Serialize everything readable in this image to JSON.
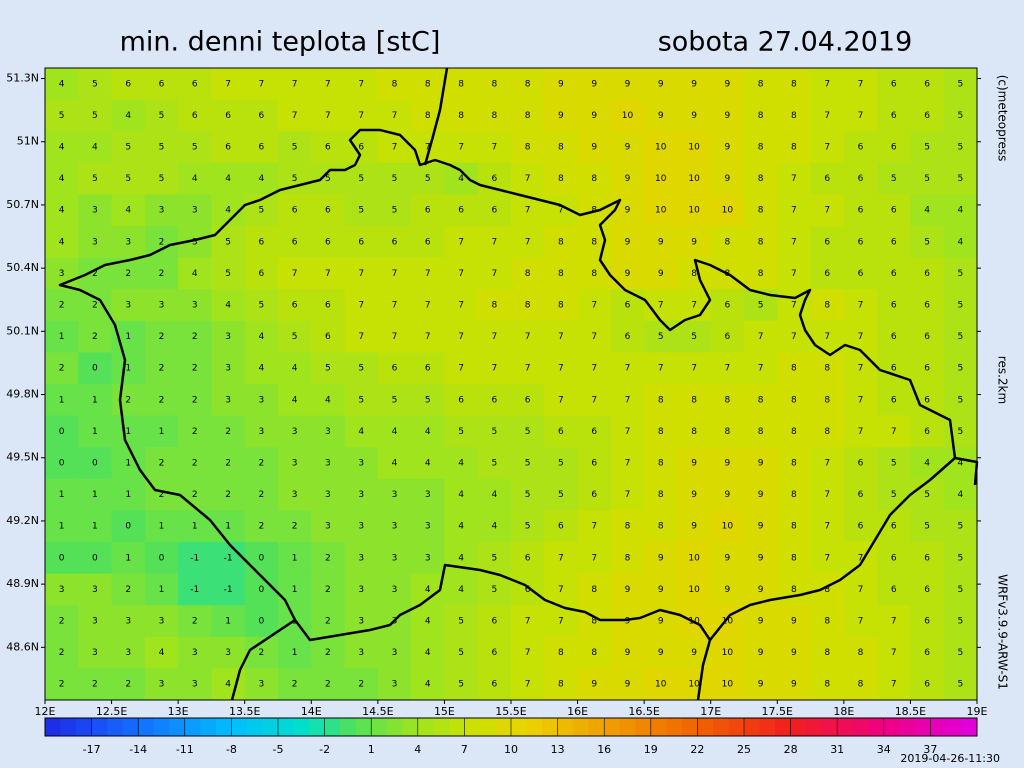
{
  "header": {
    "title": "min. denni teplota [stC]",
    "date": "sobota 27.04.2019"
  },
  "side": {
    "copyright": "(c)meteopress",
    "resolution": "res.2km",
    "model": "WRFv3.9.9-ARW-S1"
  },
  "footer": {
    "run": "2019-04-26-11:30"
  },
  "map": {
    "xlim": [
      12,
      19
    ],
    "ylim": [
      48.35,
      51.35
    ],
    "xticks": [
      {
        "value": 12,
        "label": "12E"
      },
      {
        "value": 12.5,
        "label": "12.5E"
      },
      {
        "value": 13,
        "label": "13E"
      },
      {
        "value": 13.5,
        "label": "13.5E"
      },
      {
        "value": 14,
        "label": "14E"
      },
      {
        "value": 14.5,
        "label": "14.5E"
      },
      {
        "value": 15,
        "label": "15E"
      },
      {
        "value": 15.5,
        "label": "15.5E"
      },
      {
        "value": 16,
        "label": "16E"
      },
      {
        "value": 16.5,
        "label": "16.5E"
      },
      {
        "value": 17,
        "label": "17E"
      },
      {
        "value": 17.5,
        "label": "17.5E"
      },
      {
        "value": 18,
        "label": "18E"
      },
      {
        "value": 18.5,
        "label": "18.5E"
      },
      {
        "value": 19,
        "label": "19E"
      }
    ],
    "yticks": [
      {
        "value": 51.3,
        "label": "51.3N"
      },
      {
        "value": 51,
        "label": "51N"
      },
      {
        "value": 50.7,
        "label": "50.7N"
      },
      {
        "value": 50.4,
        "label": "50.4N"
      },
      {
        "value": 50.1,
        "label": "50.1N"
      },
      {
        "value": 49.8,
        "label": "49.8N"
      },
      {
        "value": 49.5,
        "label": "49.5N"
      },
      {
        "value": 49.2,
        "label": "49.2N"
      },
      {
        "value": 48.9,
        "label": "48.9N"
      },
      {
        "value": 48.6,
        "label": "48.6N"
      }
    ],
    "grid": [
      [
        4,
        5,
        6,
        6,
        6,
        7,
        7,
        7,
        7,
        7,
        8,
        8,
        8,
        8,
        8,
        9,
        9,
        9,
        9,
        9,
        9,
        8,
        8,
        7,
        7,
        6,
        6,
        5
      ],
      [
        5,
        5,
        4,
        5,
        6,
        6,
        6,
        7,
        7,
        7,
        7,
        8,
        8,
        8,
        8,
        9,
        9,
        10,
        9,
        9,
        9,
        8,
        8,
        7,
        7,
        6,
        6,
        5
      ],
      [
        4,
        4,
        5,
        5,
        5,
        6,
        6,
        5,
        6,
        6,
        7,
        7,
        7,
        7,
        8,
        8,
        9,
        9,
        10,
        10,
        9,
        8,
        8,
        7,
        6,
        6,
        5,
        5
      ],
      [
        4,
        5,
        5,
        5,
        4,
        4,
        4,
        5,
        5,
        5,
        5,
        5,
        4,
        6,
        7,
        8,
        8,
        9,
        10,
        10,
        9,
        8,
        7,
        6,
        6,
        5,
        5,
        5
      ],
      [
        4,
        3,
        4,
        3,
        3,
        4,
        5,
        6,
        6,
        5,
        5,
        6,
        6,
        6,
        7,
        7,
        8,
        9,
        10,
        10,
        10,
        8,
        7,
        7,
        6,
        6,
        4,
        4
      ],
      [
        4,
        3,
        3,
        2,
        3,
        5,
        6,
        6,
        6,
        6,
        6,
        6,
        7,
        7,
        7,
        8,
        8,
        9,
        9,
        9,
        8,
        8,
        7,
        6,
        6,
        6,
        5,
        4
      ],
      [
        3,
        2,
        2,
        2,
        4,
        5,
        6,
        7,
        7,
        7,
        7,
        7,
        7,
        7,
        8,
        8,
        8,
        9,
        9,
        8,
        8,
        8,
        7,
        6,
        6,
        6,
        6,
        5
      ],
      [
        2,
        2,
        3,
        3,
        3,
        4,
        5,
        6,
        6,
        7,
        7,
        7,
        7,
        8,
        8,
        8,
        7,
        6,
        7,
        7,
        6,
        5,
        7,
        8,
        7,
        6,
        6,
        5
      ],
      [
        1,
        2,
        1,
        2,
        2,
        3,
        4,
        5,
        6,
        7,
        7,
        7,
        7,
        7,
        7,
        7,
        7,
        6,
        5,
        5,
        6,
        7,
        7,
        7,
        7,
        6,
        6,
        5
      ],
      [
        2,
        0,
        1,
        2,
        2,
        3,
        4,
        4,
        5,
        5,
        6,
        6,
        7,
        7,
        7,
        7,
        7,
        7,
        7,
        7,
        7,
        7,
        8,
        8,
        7,
        6,
        6,
        5
      ],
      [
        1,
        1,
        2,
        2,
        2,
        3,
        3,
        4,
        4,
        5,
        5,
        5,
        6,
        6,
        6,
        7,
        7,
        7,
        8,
        8,
        8,
        8,
        8,
        8,
        7,
        6,
        6,
        5
      ],
      [
        0,
        1,
        1,
        1,
        2,
        2,
        3,
        3,
        3,
        4,
        4,
        4,
        5,
        5,
        5,
        6,
        6,
        7,
        8,
        8,
        8,
        8,
        8,
        8,
        7,
        7,
        6,
        5
      ],
      [
        0,
        0,
        1,
        2,
        2,
        2,
        2,
        3,
        3,
        3,
        4,
        4,
        4,
        5,
        5,
        5,
        6,
        7,
        8,
        9,
        9,
        9,
        8,
        7,
        6,
        5,
        4,
        4
      ],
      [
        1,
        1,
        1,
        2,
        2,
        2,
        2,
        3,
        3,
        3,
        3,
        3,
        4,
        4,
        5,
        5,
        6,
        7,
        8,
        9,
        9,
        9,
        8,
        7,
        6,
        5,
        5,
        4
      ],
      [
        1,
        1,
        0,
        1,
        1,
        1,
        2,
        2,
        3,
        3,
        3,
        3,
        4,
        4,
        5,
        6,
        7,
        8,
        8,
        9,
        10,
        9,
        8,
        7,
        6,
        6,
        5,
        5
      ],
      [
        0,
        0,
        1,
        0,
        -1,
        -1,
        0,
        1,
        2,
        3,
        3,
        3,
        4,
        5,
        6,
        7,
        7,
        8,
        9,
        10,
        9,
        9,
        8,
        7,
        7,
        6,
        6,
        5
      ],
      [
        3,
        3,
        2,
        1,
        -1,
        -1,
        0,
        1,
        2,
        3,
        3,
        4,
        4,
        5,
        6,
        7,
        8,
        9,
        9,
        10,
        9,
        9,
        8,
        8,
        7,
        6,
        6,
        5
      ],
      [
        2,
        3,
        3,
        3,
        2,
        1,
        0,
        1,
        2,
        3,
        3,
        4,
        5,
        6,
        7,
        7,
        8,
        9,
        9,
        10,
        10,
        9,
        9,
        8,
        7,
        7,
        6,
        5
      ],
      [
        2,
        3,
        3,
        4,
        3,
        3,
        2,
        1,
        2,
        3,
        3,
        4,
        5,
        6,
        7,
        8,
        8,
        9,
        9,
        9,
        10,
        9,
        9,
        8,
        8,
        7,
        6,
        5
      ],
      [
        2,
        2,
        2,
        3,
        3,
        4,
        3,
        2,
        2,
        2,
        3,
        4,
        5,
        6,
        7,
        8,
        9,
        9,
        10,
        10,
        10,
        9,
        9,
        8,
        8,
        7,
        6,
        5
      ]
    ]
  },
  "colorbar": {
    "lim": [
      -20,
      40
    ],
    "ticks": [
      -17,
      -14,
      -11,
      -8,
      -5,
      -2,
      1,
      4,
      7,
      10,
      13,
      16,
      19,
      22,
      25,
      28,
      31,
      34,
      37
    ]
  }
}
